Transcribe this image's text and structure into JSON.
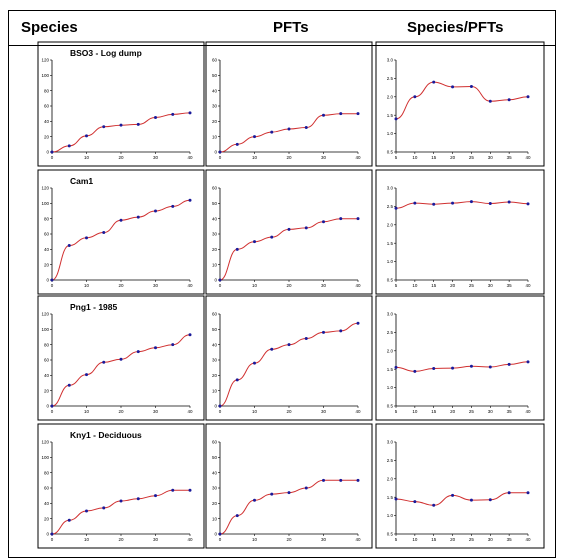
{
  "header": {
    "species": "Species",
    "pfts": "PFTs",
    "ratio": "Species/PFTs"
  },
  "colors": {
    "line": "#d03030",
    "marker": "#1a1a9a",
    "axis": "#000000",
    "border": "#000000"
  },
  "chart_data": [
    {
      "row": 0,
      "title": "BSO3 - Log dump",
      "panels": [
        {
          "column": "Species",
          "type": "line",
          "x": [
            0,
            5,
            10,
            15,
            20,
            25,
            30,
            35,
            40
          ],
          "y": [
            0,
            8,
            21,
            33,
            35,
            36,
            45,
            49,
            51
          ],
          "ylim": [
            0,
            120
          ],
          "yticks": [
            0,
            20,
            40,
            60,
            80,
            100,
            120
          ],
          "ytick_labels": [
            "0",
            "20",
            "40",
            "60",
            "80",
            "100",
            "120"
          ],
          "xticks": [
            0,
            10,
            20,
            30,
            40
          ],
          "xtick_labels": [
            "0",
            "10",
            "20",
            "30",
            "40"
          ]
        },
        {
          "column": "PFTs",
          "type": "line",
          "x": [
            0,
            5,
            10,
            15,
            20,
            25,
            30,
            35,
            40
          ],
          "y": [
            0,
            5,
            10,
            13,
            15,
            16,
            24,
            25,
            25
          ],
          "ylim": [
            0,
            60
          ],
          "yticks": [
            0,
            10,
            20,
            30,
            40,
            50,
            60
          ],
          "ytick_labels": [
            "0",
            "10",
            "20",
            "30",
            "40",
            "50",
            "60"
          ],
          "xticks": [
            0,
            10,
            20,
            30,
            40
          ],
          "xtick_labels": [
            "0",
            "10",
            "20",
            "30",
            "40"
          ]
        },
        {
          "column": "Species/PFTs",
          "type": "line",
          "x": [
            5,
            10,
            15,
            20,
            25,
            30,
            35,
            40
          ],
          "y": [
            1.4,
            2.0,
            2.4,
            2.27,
            2.28,
            1.88,
            1.92,
            2.0
          ],
          "ylim": [
            0.5,
            3.0
          ],
          "yticks": [
            0.5,
            1.0,
            1.5,
            2.0,
            2.5,
            3.0
          ],
          "ytick_labels": [
            "0.5",
            "1.0",
            "1.5",
            "2.0",
            "2.5",
            "3.0"
          ],
          "xticks": [
            5,
            10,
            15,
            20,
            25,
            30,
            35,
            40
          ],
          "xtick_labels": [
            "5",
            "10",
            "15",
            "20",
            "25",
            "30",
            "35",
            "40"
          ]
        }
      ]
    },
    {
      "row": 1,
      "title": "Cam1",
      "panels": [
        {
          "column": "Species",
          "type": "line",
          "x": [
            0,
            5,
            10,
            15,
            20,
            25,
            30,
            35,
            40
          ],
          "y": [
            0,
            45,
            55,
            62,
            78,
            82,
            90,
            96,
            104
          ],
          "ylim": [
            0,
            120
          ],
          "yticks": [
            0,
            20,
            40,
            60,
            80,
            100,
            120
          ],
          "ytick_labels": [
            "0",
            "20",
            "40",
            "60",
            "80",
            "100",
            "120"
          ],
          "xticks": [
            0,
            10,
            20,
            30,
            40
          ],
          "xtick_labels": [
            "0",
            "10",
            "20",
            "30",
            "40"
          ]
        },
        {
          "column": "PFTs",
          "type": "line",
          "x": [
            0,
            5,
            10,
            15,
            20,
            25,
            30,
            35,
            40
          ],
          "y": [
            0,
            20,
            25,
            28,
            33,
            34,
            38,
            40,
            40
          ],
          "ylim": [
            0,
            60
          ],
          "yticks": [
            0,
            10,
            20,
            30,
            40,
            50,
            60
          ],
          "ytick_labels": [
            "0",
            "10",
            "20",
            "30",
            "40",
            "50",
            "60"
          ],
          "xticks": [
            0,
            10,
            20,
            30,
            40
          ],
          "xtick_labels": [
            "0",
            "10",
            "20",
            "30",
            "40"
          ]
        },
        {
          "column": "Species/PFTs",
          "type": "line",
          "x": [
            5,
            10,
            15,
            20,
            25,
            30,
            35,
            40
          ],
          "y": [
            2.45,
            2.59,
            2.56,
            2.59,
            2.63,
            2.58,
            2.62,
            2.57
          ],
          "ylim": [
            0.5,
            3.0
          ],
          "yticks": [
            0.5,
            1.0,
            1.5,
            2.0,
            2.5,
            3.0
          ],
          "ytick_labels": [
            "0.5",
            "1.0",
            "1.5",
            "2.0",
            "2.5",
            "3.0"
          ],
          "xticks": [
            5,
            10,
            15,
            20,
            25,
            30,
            35,
            40
          ],
          "xtick_labels": [
            "5",
            "10",
            "15",
            "20",
            "25",
            "30",
            "35",
            "40"
          ]
        }
      ]
    },
    {
      "row": 2,
      "title": "Png1 - 1985",
      "panels": [
        {
          "column": "Species",
          "type": "line",
          "x": [
            0,
            5,
            10,
            15,
            20,
            25,
            30,
            35,
            40
          ],
          "y": [
            0,
            27,
            41,
            57,
            61,
            71,
            76,
            80,
            93
          ],
          "ylim": [
            0,
            120
          ],
          "yticks": [
            0,
            20,
            40,
            60,
            80,
            100,
            120
          ],
          "ytick_labels": [
            "0",
            "20",
            "40",
            "60",
            "80",
            "100",
            "120"
          ],
          "xticks": [
            0,
            10,
            20,
            30,
            40
          ],
          "xtick_labels": [
            "0",
            "10",
            "20",
            "30",
            "40"
          ]
        },
        {
          "column": "PFTs",
          "type": "line",
          "x": [
            0,
            5,
            10,
            15,
            20,
            25,
            30,
            35,
            40
          ],
          "y": [
            0,
            17,
            28,
            37,
            40,
            44,
            48,
            49,
            54
          ],
          "ylim": [
            0,
            60
          ],
          "yticks": [
            0,
            10,
            20,
            30,
            40,
            50,
            60
          ],
          "ytick_labels": [
            "0",
            "10",
            "20",
            "30",
            "40",
            "50",
            "60"
          ],
          "xticks": [
            0,
            10,
            20,
            30,
            40
          ],
          "xtick_labels": [
            "0",
            "10",
            "20",
            "30",
            "40"
          ]
        },
        {
          "column": "Species/PFTs",
          "type": "line",
          "x": [
            5,
            10,
            15,
            20,
            25,
            30,
            35,
            40
          ],
          "y": [
            1.55,
            1.44,
            1.52,
            1.53,
            1.58,
            1.56,
            1.63,
            1.7
          ],
          "ylim": [
            0.5,
            3.0
          ],
          "yticks": [
            0.5,
            1.0,
            1.5,
            2.0,
            2.5,
            3.0
          ],
          "ytick_labels": [
            "0.5",
            "1.0",
            "1.5",
            "2.0",
            "2.5",
            "3.0"
          ],
          "xticks": [
            5,
            10,
            15,
            20,
            25,
            30,
            35,
            40
          ],
          "xtick_labels": [
            "5",
            "10",
            "15",
            "20",
            "25",
            "30",
            "35",
            "40"
          ]
        }
      ]
    },
    {
      "row": 3,
      "title": "Kny1 - Deciduous",
      "panels": [
        {
          "column": "Species",
          "type": "line",
          "x": [
            0,
            5,
            10,
            15,
            20,
            25,
            30,
            35,
            40
          ],
          "y": [
            0,
            18,
            30,
            34,
            43,
            46,
            50,
            57,
            57
          ],
          "ylim": [
            0,
            120
          ],
          "yticks": [
            0,
            20,
            40,
            60,
            80,
            100,
            120
          ],
          "ytick_labels": [
            "0",
            "20",
            "40",
            "60",
            "80",
            "100",
            "120"
          ],
          "xticks": [
            0,
            10,
            20,
            30,
            40
          ],
          "xtick_labels": [
            "0",
            "10",
            "20",
            "30",
            "40"
          ]
        },
        {
          "column": "PFTs",
          "type": "line",
          "x": [
            0,
            5,
            10,
            15,
            20,
            25,
            30,
            35,
            40
          ],
          "y": [
            0,
            12,
            22,
            26,
            27,
            30,
            35,
            35,
            35
          ],
          "ylim": [
            0,
            60
          ],
          "yticks": [
            0,
            10,
            20,
            30,
            40,
            50,
            60
          ],
          "ytick_labels": [
            "0",
            "10",
            "20",
            "30",
            "40",
            "50",
            "60"
          ],
          "xticks": [
            0,
            10,
            20,
            30,
            40
          ],
          "xtick_labels": [
            "0",
            "10",
            "20",
            "30",
            "40"
          ]
        },
        {
          "column": "Species/PFTs",
          "type": "line",
          "x": [
            5,
            10,
            15,
            20,
            25,
            30,
            35,
            40
          ],
          "y": [
            1.45,
            1.38,
            1.28,
            1.55,
            1.42,
            1.43,
            1.62,
            1.62
          ],
          "ylim": [
            0.5,
            3.0
          ],
          "yticks": [
            0.5,
            1.0,
            1.5,
            2.0,
            2.5,
            3.0
          ],
          "ytick_labels": [
            "0.5",
            "1.0",
            "1.5",
            "2.0",
            "2.5",
            "3.0"
          ],
          "xticks": [
            5,
            10,
            15,
            20,
            25,
            30,
            35,
            40
          ],
          "xtick_labels": [
            "5",
            "10",
            "15",
            "20",
            "25",
            "30",
            "35",
            "40"
          ]
        }
      ]
    }
  ]
}
